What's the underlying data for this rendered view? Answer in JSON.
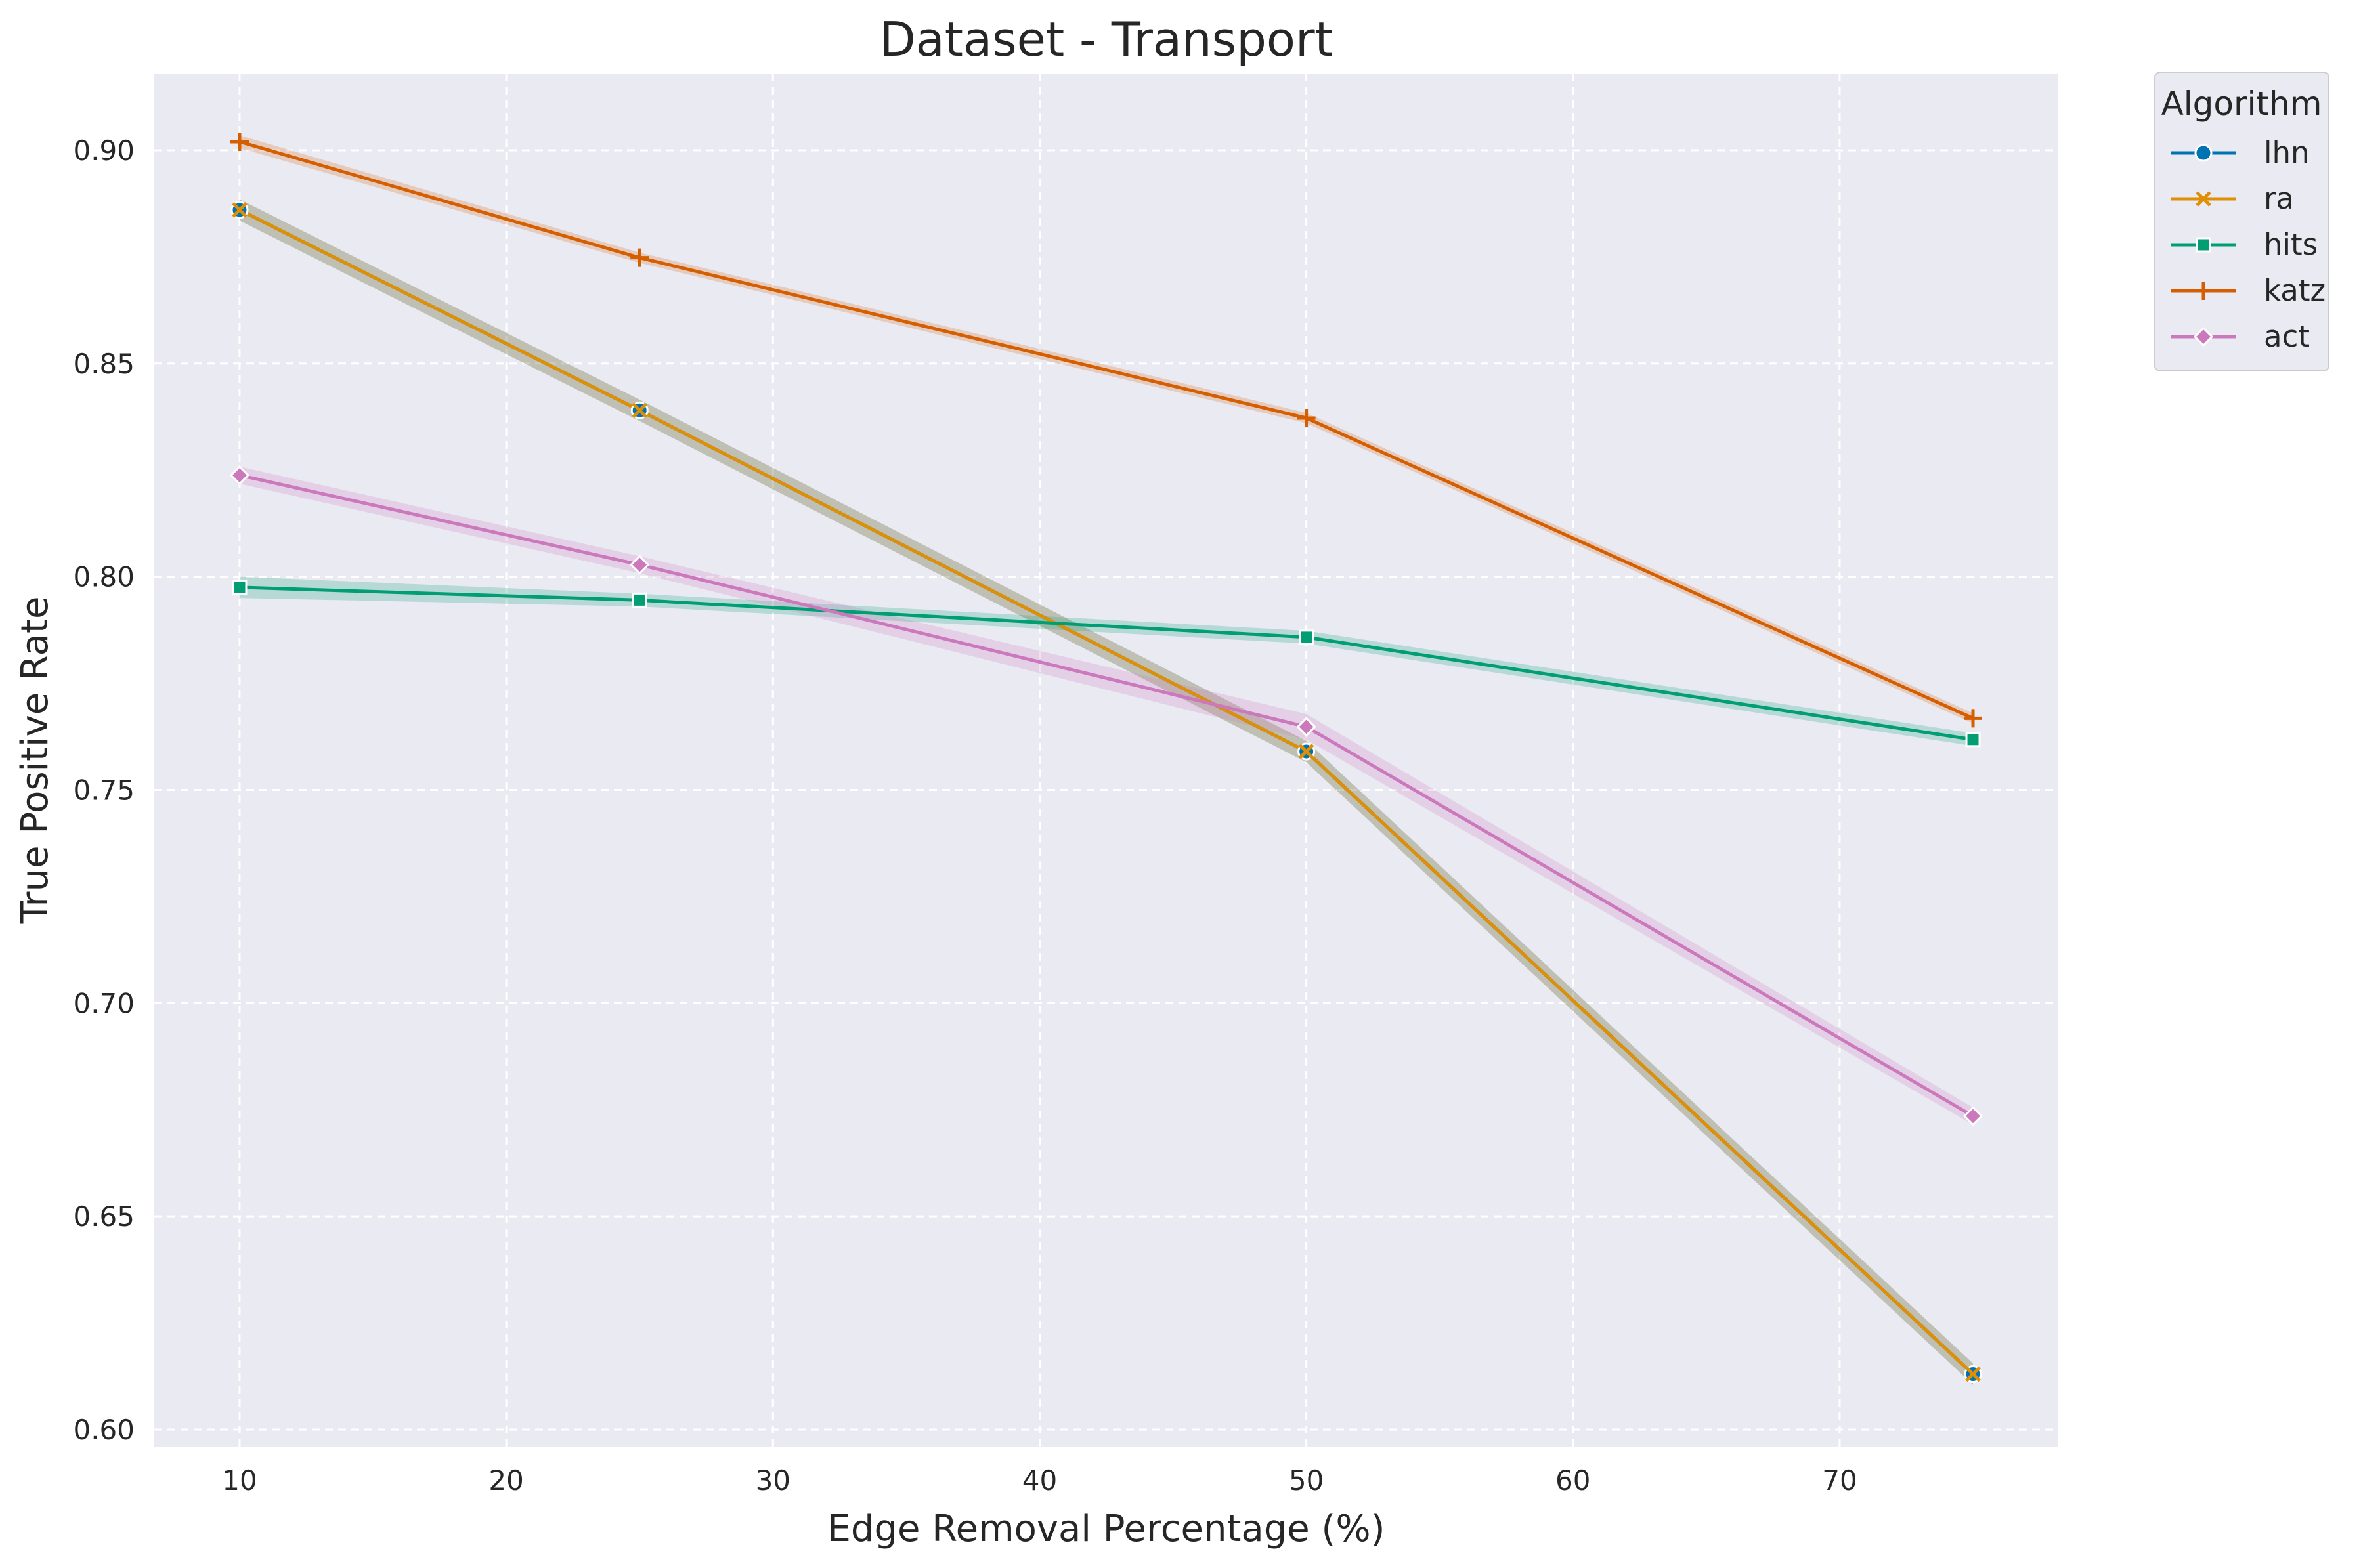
{
  "chart_data": {
    "type": "line",
    "title": "Dataset - Transport",
    "xlabel": "Edge Removal Percentage (%)",
    "ylabel": "True Positive Rate",
    "xlim": [
      6.8,
      78.2
    ],
    "ylim": [
      0.596,
      0.918
    ],
    "xticks": [
      10,
      20,
      30,
      40,
      50,
      60,
      70
    ],
    "yticks": [
      0.6,
      0.65,
      0.7,
      0.75,
      0.8,
      0.85,
      0.9
    ],
    "xtick_labels": [
      "10",
      "20",
      "30",
      "40",
      "50",
      "60",
      "70"
    ],
    "ytick_labels": [
      "0.60",
      "0.65",
      "0.70",
      "0.75",
      "0.80",
      "0.85",
      "0.90"
    ],
    "grid": true,
    "x": [
      10,
      25,
      50,
      75
    ],
    "series": [
      {
        "name": "lhn",
        "marker": "circle",
        "color": "#0173b2",
        "values": [
          0.886,
          0.839,
          0.759,
          0.613
        ],
        "ci": [
          0.0025,
          0.0025,
          0.0025,
          0.0025
        ]
      },
      {
        "name": "ra",
        "marker": "x",
        "color": "#de8f05",
        "values": [
          0.886,
          0.839,
          0.759,
          0.613
        ],
        "ci": [
          0.0025,
          0.0025,
          0.0025,
          0.0025
        ]
      },
      {
        "name": "hits",
        "marker": "square",
        "color": "#029e73",
        "values": [
          0.7975,
          0.7945,
          0.7858,
          0.7618
        ],
        "ci": [
          0.0025,
          0.0015,
          0.0015,
          0.0015
        ]
      },
      {
        "name": "katz",
        "marker": "plus",
        "color": "#d55e00",
        "values": [
          0.902,
          0.8748,
          0.8372,
          0.7668
        ],
        "ci": [
          0.0015,
          0.0012,
          0.0012,
          0.0012
        ]
      },
      {
        "name": "act",
        "marker": "diamond",
        "color": "#cc78bc",
        "values": [
          0.8238,
          0.8028,
          0.7648,
          0.6735
        ],
        "ci": [
          0.002,
          0.002,
          0.003,
          0.002
        ]
      }
    ],
    "legend": {
      "title": "Algorithm",
      "placement": "outside-top-right"
    }
  }
}
